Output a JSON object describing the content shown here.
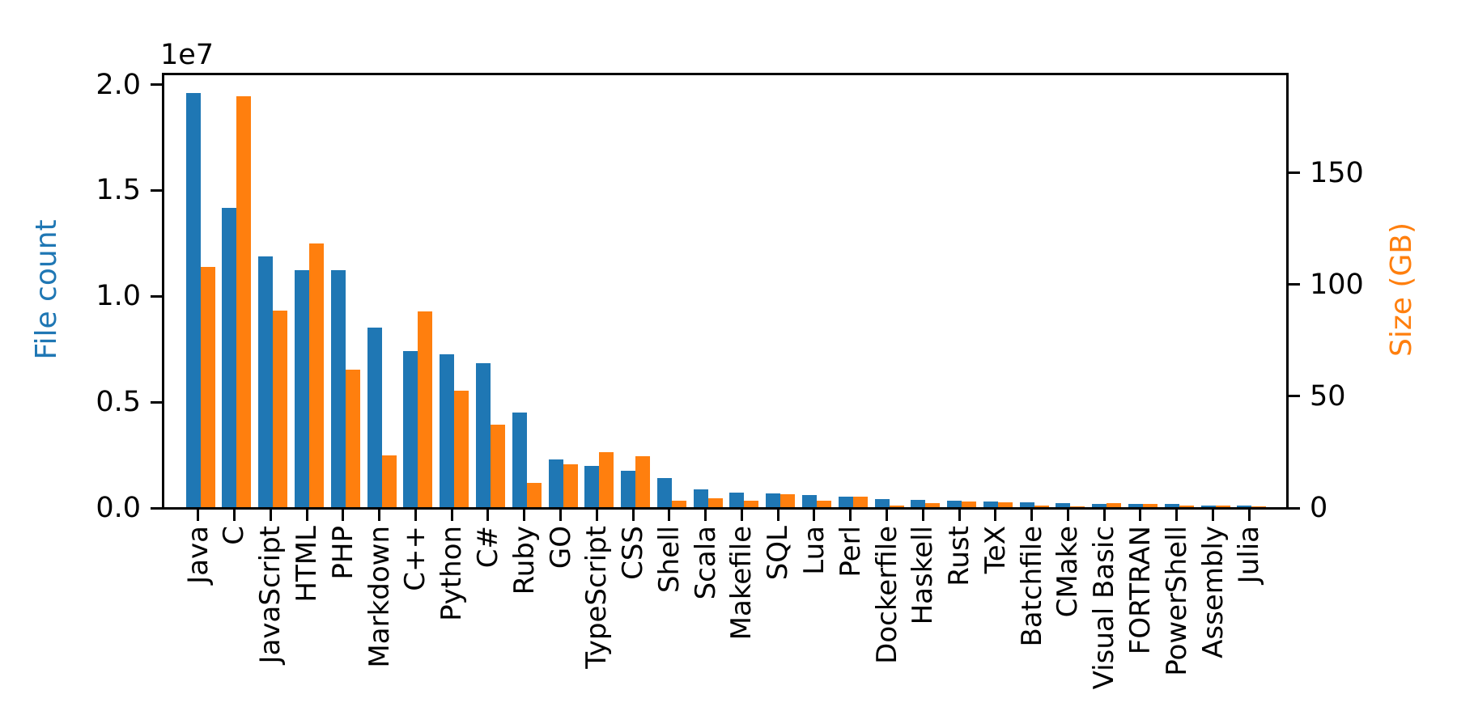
{
  "chart_data": {
    "type": "bar",
    "title": "",
    "grid": false,
    "legend": "none",
    "background": "#ffffff",
    "categories": [
      "Java",
      "C",
      "JavaScript",
      "HTML",
      "PHP",
      "Markdown",
      "C++",
      "Python",
      "C#",
      "Ruby",
      "GO",
      "TypeScript",
      "CSS",
      "Shell",
      "Scala",
      "Makefile",
      "SQL",
      "Lua",
      "Perl",
      "Dockerfile",
      "Haskell",
      "Rust",
      "TeX",
      "Batchfile",
      "CMake",
      "Visual Basic",
      "FORTRAN",
      "PowerShell",
      "Assembly",
      "Julia"
    ],
    "series": [
      {
        "name": "File count",
        "axis": "left",
        "color": "#1f77b4",
        "values": [
          19548190,
          14143113,
          11839883,
          11178557,
          11177610,
          8464626,
          7380520,
          7226626,
          6811652,
          4473331,
          2265436,
          1940406,
          1734406,
          1385648,
          835755,
          679430,
          656671,
          578554,
          497949,
          366505,
          340623,
          322431,
          251015,
          236945,
          175282,
          155652,
          142038,
          136846,
          82905,
          58317
        ]
      },
      {
        "name": "Size (GB)",
        "axis": "right",
        "color": "#ff7f0e",
        "values": [
          107.7,
          183.83,
          87.82,
          118.12,
          61.41,
          23.09,
          87.73,
          52.03,
          36.83,
          10.95,
          19.28,
          24.59,
          22.67,
          3.01,
          3.87,
          2.92,
          5.67,
          2.81,
          4.7,
          0.71,
          1.85,
          2.68,
          2.15,
          0.7,
          0.54,
          1.91,
          1.62,
          0.69,
          0.78,
          0.29
        ]
      }
    ],
    "left_axis": {
      "label": "File count",
      "color": "#1f77b4",
      "offset_text": "1e7",
      "tick_labels": [
        "0.0",
        "0.5",
        "1.0",
        "1.5",
        "2.0"
      ],
      "tick_values": [
        0,
        5000000,
        10000000,
        15000000,
        20000000
      ],
      "range": [
        0,
        20440000
      ]
    },
    "right_axis": {
      "label": "Size (GB)",
      "color": "#ff7f0e",
      "tick_labels": [
        "0",
        "50",
        "100",
        "150"
      ],
      "tick_values": [
        0,
        50,
        100,
        150
      ],
      "range": [
        0,
        193.7
      ]
    },
    "x_axis": {
      "tick_label_rotation": 90
    }
  }
}
